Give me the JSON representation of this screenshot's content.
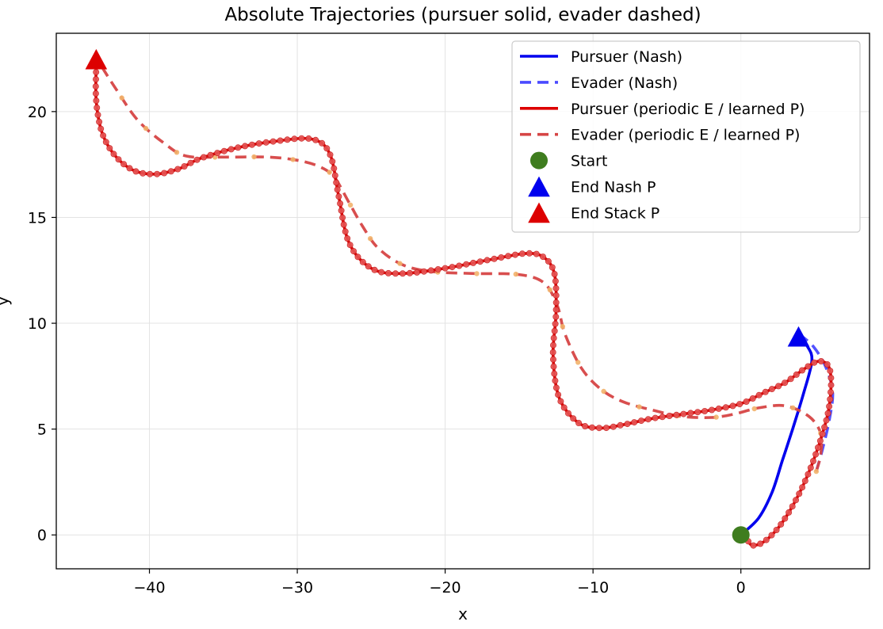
{
  "chart_data": {
    "type": "line",
    "title": "Absolute Trajectories (pursuer solid, evader dashed)",
    "xlabel": "x",
    "ylabel": "y",
    "xlim": [
      -46.3,
      8.7
    ],
    "ylim": [
      -1.6,
      23.7
    ],
    "xticks": [
      -40,
      -30,
      -20,
      -10,
      0
    ],
    "yticks": [
      0,
      5,
      10,
      15,
      20
    ],
    "xtick_labels": [
      "−40",
      "−30",
      "−20",
      "−10",
      "0"
    ],
    "ytick_labels": [
      "0",
      "5",
      "10",
      "15",
      "20"
    ],
    "grid": true,
    "legend_position": "top-right",
    "series": [
      {
        "name": "Pursuer (Nash)",
        "style": "solid",
        "color": "#0000ee",
        "points": [
          [
            0.0,
            0.0
          ],
          [
            1.2,
            0.8
          ],
          [
            2.1,
            2.0
          ],
          [
            2.8,
            3.5
          ],
          [
            3.5,
            5.0
          ],
          [
            4.2,
            6.6
          ],
          [
            4.8,
            8.2
          ],
          [
            4.5,
            8.9
          ],
          [
            3.9,
            9.3
          ]
        ]
      },
      {
        "name": "Evader (Nash)",
        "style": "dashed",
        "color": "#4a4aff",
        "points": [
          [
            5.1,
            3.0
          ],
          [
            5.5,
            4.0
          ],
          [
            6.0,
            5.5
          ],
          [
            6.2,
            6.8
          ],
          [
            5.7,
            8.0
          ],
          [
            4.9,
            8.9
          ],
          [
            4.1,
            9.4
          ]
        ]
      },
      {
        "name": "Pursuer (periodic E / learned P)",
        "style": "solid",
        "color": "#dd0000",
        "points": [
          [
            0.5,
            -0.3
          ],
          [
            0.8,
            -0.5
          ],
          [
            1.6,
            -0.3
          ],
          [
            2.6,
            0.4
          ],
          [
            3.6,
            1.5
          ],
          [
            4.5,
            2.8
          ],
          [
            5.3,
            4.3
          ],
          [
            5.9,
            5.8
          ],
          [
            6.1,
            7.2
          ],
          [
            5.9,
            8.0
          ],
          [
            5.2,
            8.2
          ],
          [
            4.2,
            7.8
          ],
          [
            3.0,
            7.2
          ],
          [
            1.5,
            6.7
          ],
          [
            0.0,
            6.2
          ],
          [
            -2.0,
            5.9
          ],
          [
            -4.0,
            5.7
          ],
          [
            -6.0,
            5.5
          ],
          [
            -8.0,
            5.2
          ],
          [
            -9.5,
            5.05
          ],
          [
            -11.0,
            5.3
          ],
          [
            -12.3,
            6.5
          ],
          [
            -12.7,
            8.5
          ],
          [
            -12.5,
            10.5
          ],
          [
            -12.6,
            12.3
          ],
          [
            -13.3,
            13.1
          ],
          [
            -14.5,
            13.3
          ],
          [
            -17.0,
            13.0
          ],
          [
            -20.0,
            12.6
          ],
          [
            -23.0,
            12.35
          ],
          [
            -25.0,
            12.6
          ],
          [
            -26.5,
            13.8
          ],
          [
            -27.2,
            16.0
          ],
          [
            -27.8,
            18.0
          ],
          [
            -29.0,
            18.7
          ],
          [
            -31.5,
            18.6
          ],
          [
            -34.0,
            18.3
          ],
          [
            -36.5,
            17.8
          ],
          [
            -38.0,
            17.3
          ],
          [
            -39.5,
            17.05
          ],
          [
            -41.0,
            17.2
          ],
          [
            -42.3,
            17.9
          ],
          [
            -43.2,
            19.0
          ],
          [
            -43.6,
            20.5
          ],
          [
            -43.6,
            22.2
          ]
        ]
      },
      {
        "name": "Evader (periodic E / learned P)",
        "style": "dashed",
        "color": "#d64545",
        "points": [
          [
            5.1,
            3.0
          ],
          [
            5.4,
            3.8
          ],
          [
            5.4,
            4.8
          ],
          [
            4.6,
            5.6
          ],
          [
            3.0,
            6.1
          ],
          [
            1.2,
            6.0
          ],
          [
            -0.5,
            5.7
          ],
          [
            -2.0,
            5.55
          ],
          [
            -4.0,
            5.6
          ],
          [
            -6.0,
            5.9
          ],
          [
            -8.0,
            6.3
          ],
          [
            -9.5,
            6.9
          ],
          [
            -10.8,
            7.9
          ],
          [
            -11.9,
            9.5
          ],
          [
            -12.4,
            10.8
          ],
          [
            -13.3,
            11.9
          ],
          [
            -15.0,
            12.3
          ],
          [
            -18.0,
            12.35
          ],
          [
            -21.0,
            12.45
          ],
          [
            -23.0,
            12.8
          ],
          [
            -24.6,
            13.6
          ],
          [
            -25.6,
            14.6
          ],
          [
            -26.5,
            15.7
          ],
          [
            -27.5,
            16.9
          ],
          [
            -28.5,
            17.4
          ],
          [
            -30.0,
            17.7
          ],
          [
            -32.0,
            17.85
          ],
          [
            -35.0,
            17.85
          ],
          [
            -37.5,
            17.9
          ],
          [
            -39.0,
            18.5
          ],
          [
            -40.8,
            19.6
          ],
          [
            -42.2,
            21.0
          ],
          [
            -43.3,
            22.2
          ]
        ]
      }
    ],
    "markers": [
      {
        "name": "Start",
        "shape": "circle",
        "color": "#3f7d1f",
        "x": 0.0,
        "y": 0.0
      },
      {
        "name": "End Nash P",
        "shape": "triangle",
        "color": "#0000ee",
        "x": 3.9,
        "y": 9.3
      },
      {
        "name": "End Stack P",
        "shape": "triangle",
        "color": "#dd0000",
        "x": -43.6,
        "y": 22.4
      }
    ]
  }
}
